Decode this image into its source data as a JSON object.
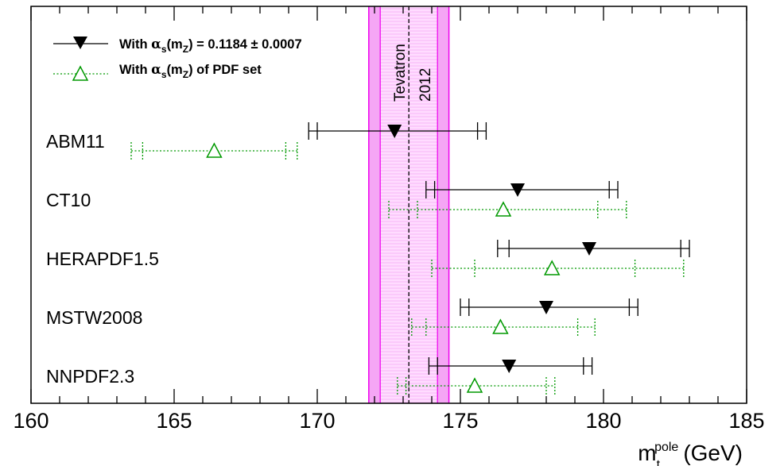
{
  "chart_data": {
    "type": "scatter",
    "x_axis": {
      "title": "m",
      "title_sub": "t",
      "title_sup": "pole",
      "title_unit": "(GeV)",
      "range": [
        160,
        185
      ],
      "ticks": [
        "160",
        "165",
        "170",
        "175",
        "180",
        "185"
      ]
    },
    "band": {
      "label_line1": "Tevatron",
      "label_line2": "2012",
      "center": 173.2,
      "inner": [
        172.2,
        174.2
      ],
      "outer": [
        171.8,
        174.6
      ],
      "color": "#ee00ee"
    },
    "legend": {
      "black_prefix": "With ",
      "black_alpha": "α",
      "black_sub1": "s",
      "black_mid": "(m",
      "black_sub2": "Z",
      "black_suffix": ") = 0.1184 ± 0.0007",
      "green_prefix": "With ",
      "green_alpha": "α",
      "green_sub1": "s",
      "green_mid": "(m",
      "green_sub2": "Z",
      "green_suffix": ") of PDF set"
    },
    "series": [
      {
        "style": "black-filled-down-triangle",
        "color": "#000000",
        "line": "solid"
      },
      {
        "style": "green-open-up-triangle",
        "color": "#009900",
        "line": "dotted"
      }
    ],
    "pdf_sets": [
      {
        "label": "ABM11",
        "fixed": {
          "value": 172.7,
          "inner": [
            170.0,
            175.6
          ],
          "outer": [
            169.7,
            175.9
          ]
        },
        "pdf": {
          "value": 166.4,
          "inner": [
            163.9,
            168.9
          ],
          "outer": [
            163.5,
            169.3
          ]
        }
      },
      {
        "label": "CT10",
        "fixed": {
          "value": 177.0,
          "inner": [
            174.1,
            180.2
          ],
          "outer": [
            173.8,
            180.5
          ]
        },
        "pdf": {
          "value": 176.5,
          "inner": [
            173.5,
            179.8
          ],
          "outer": [
            172.5,
            180.8
          ]
        }
      },
      {
        "label": "HERAPDF1.5",
        "fixed": {
          "value": 179.5,
          "inner": [
            176.7,
            182.7
          ],
          "outer": [
            176.3,
            183.0
          ]
        },
        "pdf": {
          "value": 178.2,
          "inner": [
            175.5,
            181.1
          ],
          "outer": [
            174.0,
            182.8
          ]
        }
      },
      {
        "label": "MSTW2008",
        "fixed": {
          "value": 178.0,
          "inner": [
            175.3,
            180.9
          ],
          "outer": [
            175.0,
            181.2
          ]
        },
        "pdf": {
          "value": 176.4,
          "inner": [
            173.8,
            179.1
          ],
          "outer": [
            173.3,
            179.7
          ]
        }
      },
      {
        "label": "NNPDF2.3",
        "fixed": {
          "value": 176.7,
          "inner": [
            174.2,
            179.3
          ],
          "outer": [
            173.9,
            179.6
          ]
        },
        "pdf": {
          "value": 175.5,
          "inner": [
            173.1,
            178.0
          ],
          "outer": [
            172.8,
            178.3
          ]
        }
      }
    ]
  }
}
